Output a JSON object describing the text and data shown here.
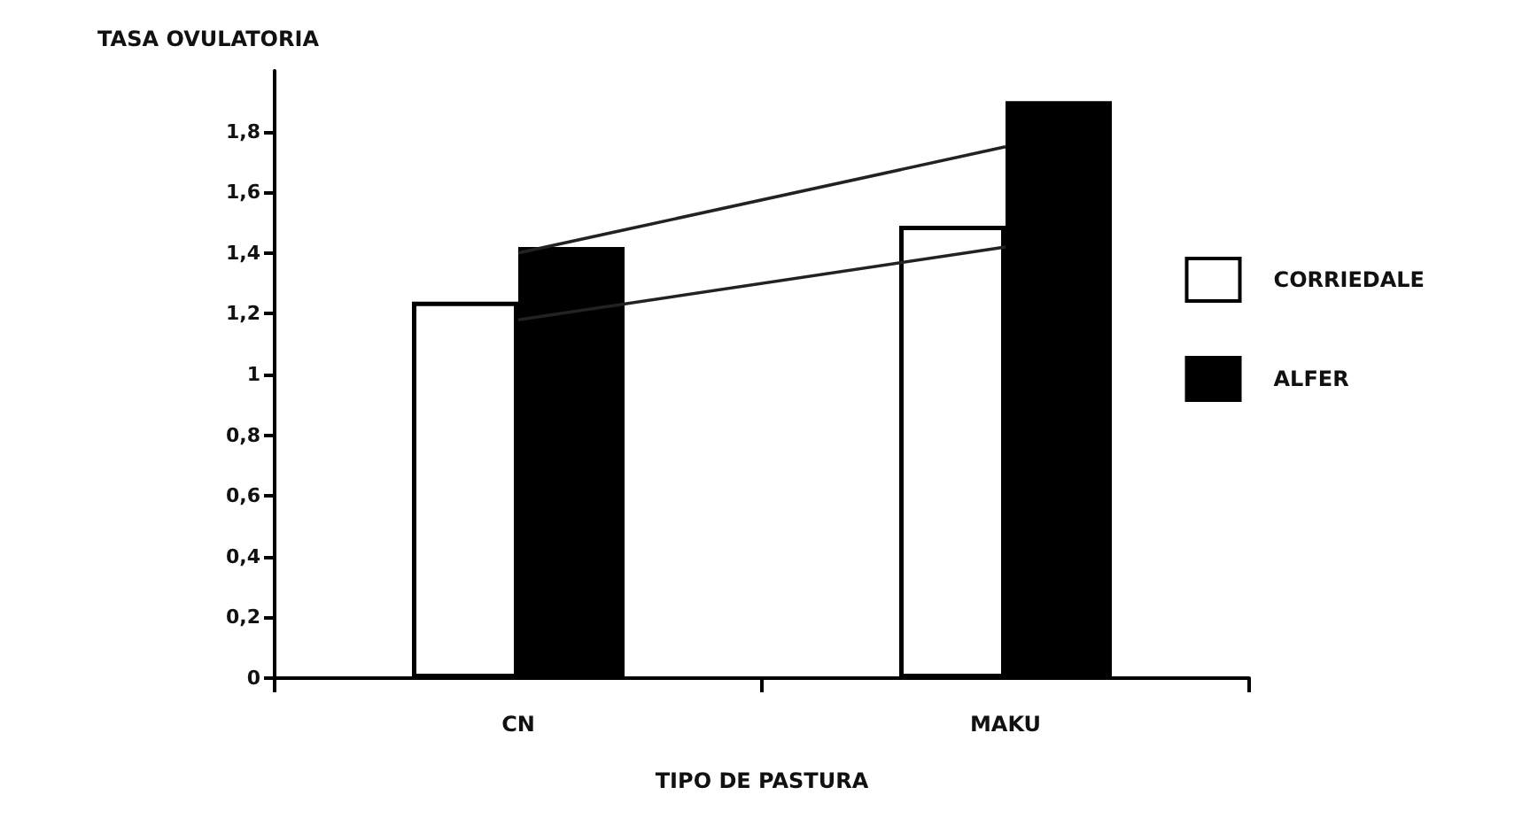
{
  "chart_data": {
    "type": "bar",
    "xlabel": "TIPO DE PASTURA",
    "ylabel": "TASA OVULATORIA",
    "categories": [
      "CN",
      "MAKU"
    ],
    "series": [
      {
        "name": "CORRIEDALE",
        "color": "#ffffff",
        "values": [
          1.24,
          1.49
        ]
      },
      {
        "name": "ALFER",
        "color": "#000000",
        "values": [
          1.42,
          1.9
        ]
      },
      {
        "type": "line",
        "color": "#222222",
        "values": [
          1.4,
          1.75
        ]
      },
      {
        "type": "line",
        "color": "#222222",
        "values": [
          1.18,
          1.42
        ]
      }
    ],
    "ylim": [
      0,
      2
    ],
    "yticks": [
      0,
      {
        "value": 0.2,
        "label": "0,2"
      },
      {
        "value": 0.4,
        "label": "0,4"
      },
      {
        "value": 0.6,
        "label": "0,6"
      },
      {
        "value": 0.8,
        "label": "0,8"
      },
      1,
      {
        "value": 1.2,
        "label": "1,2"
      },
      {
        "value": 1.4,
        "label": "1,4"
      },
      {
        "value": 1.6,
        "label": "1,6"
      },
      {
        "value": 1.8,
        "label": "1,8"
      }
    ],
    "grid": false,
    "legend": "right",
    "marker": "none",
    "line_style": "solid"
  }
}
